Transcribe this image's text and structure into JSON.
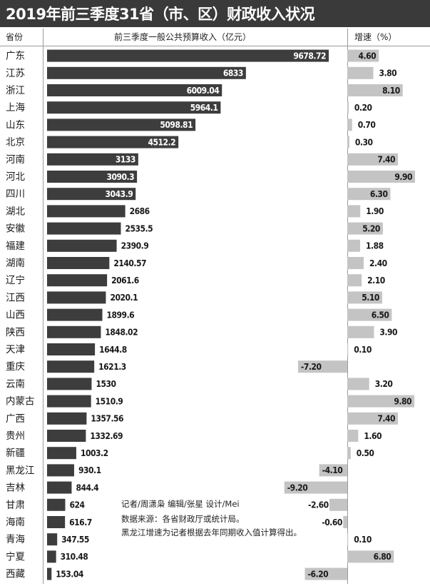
{
  "title": "2019年前三季度31省（市、区）财政收入状况",
  "headers": {
    "province": "省份",
    "revenue": "前三季度一般公共预算收入（亿元）",
    "growth": "增速（%）"
  },
  "notes": {
    "line1": "记者/周潇枭  编辑/张星  设计/Mei",
    "line2": "数据来源：各省财政厅或统计局。",
    "line3": "黑龙江增速为记者根据去年同期收入值计算得出。"
  },
  "colors": {
    "revenue_bar": "#3d3d3d",
    "growth_bar": "#c4c4c4",
    "title_bg": "#3a3a3a"
  },
  "chart_data": {
    "type": "bar",
    "categories": [
      "广东",
      "江苏",
      "浙江",
      "上海",
      "山东",
      "北京",
      "河南",
      "河北",
      "四川",
      "湖北",
      "安徽",
      "福建",
      "湖南",
      "辽宁",
      "江西",
      "山西",
      "陕西",
      "天津",
      "重庆",
      "云南",
      "内蒙古",
      "广西",
      "贵州",
      "新疆",
      "黑龙江",
      "吉林",
      "甘肃",
      "海南",
      "青海",
      "宁夏",
      "西藏"
    ],
    "series": [
      {
        "name": "前三季度一般公共预算收入（亿元）",
        "values": [
          9678.72,
          6833,
          6009.04,
          5964.1,
          5098.81,
          4512.2,
          3133,
          3090.3,
          3043.9,
          2686,
          2535.5,
          2390.9,
          2140.57,
          2061.6,
          2020.1,
          1899.6,
          1848.02,
          1644.8,
          1621.3,
          1530,
          1510.9,
          1357.56,
          1332.69,
          1003.2,
          930.1,
          844.4,
          624,
          616.7,
          347.55,
          310.48,
          153.04
        ],
        "labels": [
          "9678.72",
          "6833",
          "6009.04",
          "5964.1",
          "5098.81",
          "4512.2",
          "3133",
          "3090.3",
          "3043.9",
          "2686",
          "2535.5",
          "2390.9",
          "2140.57",
          "2061.6",
          "2020.1",
          "1899.6",
          "1848.02",
          "1644.8",
          "1621.3",
          "1530",
          "1510.9",
          "1357.56",
          "1332.69",
          "1003.2",
          "930.1",
          "844.4",
          "624",
          "616.7",
          "347.55",
          "310.48",
          "153.04"
        ]
      },
      {
        "name": "增速（%）",
        "values": [
          4.6,
          3.8,
          8.1,
          0.2,
          0.7,
          0.3,
          7.4,
          9.9,
          6.3,
          1.9,
          5.2,
          1.88,
          2.4,
          2.1,
          5.1,
          6.5,
          3.9,
          0.1,
          -7.2,
          3.2,
          9.8,
          7.4,
          1.6,
          0.5,
          -4.1,
          -9.2,
          -2.6,
          -0.6,
          0.1,
          6.8,
          -6.2
        ],
        "labels": [
          "4.60",
          "3.80",
          "8.10",
          "0.20",
          "0.70",
          "0.30",
          "7.40",
          "9.90",
          "6.30",
          "1.90",
          "5.20",
          "1.88",
          "2.40",
          "2.10",
          "5.10",
          "6.50",
          "3.90",
          "0.10",
          "-7.20",
          "3.20",
          "9.80",
          "7.40",
          "1.60",
          "0.50",
          "-4.10",
          "-9.20",
          "-2.60",
          "-0.60",
          "0.10",
          "6.80",
          "-6.20"
        ]
      }
    ]
  }
}
